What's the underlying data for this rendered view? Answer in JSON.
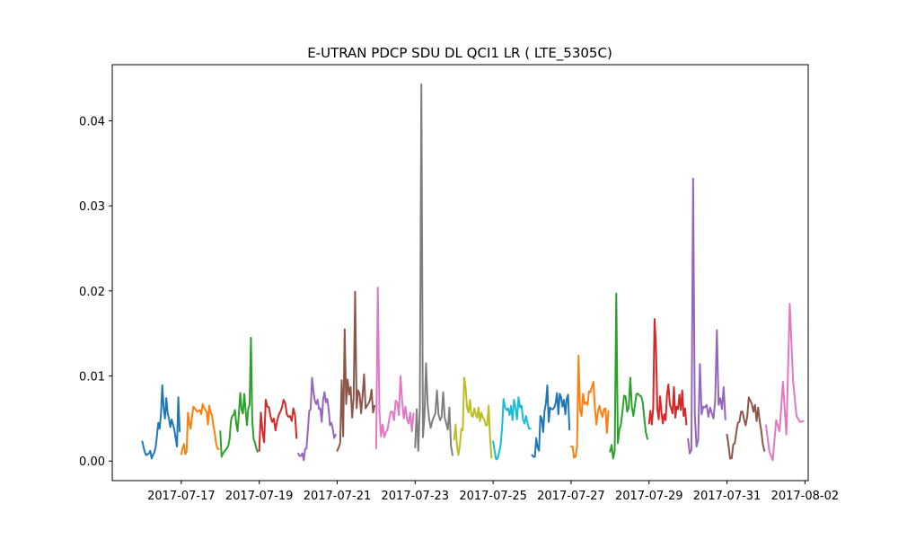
{
  "chart_data": {
    "type": "line",
    "title": "E-UTRAN PDCP SDU DL QCI1 LR ( LTE_5305C)",
    "xlabel": "",
    "ylabel": "",
    "x_axis_type": "date",
    "xlim": [
      "2017-07-15T05:30",
      "2017-08-02T02:00"
    ],
    "ylim": [
      -0.0023,
      0.0466
    ],
    "xticks": [
      "2017-07-17",
      "2017-07-19",
      "2017-07-21",
      "2017-07-23",
      "2017-07-25",
      "2017-07-27",
      "2017-07-29",
      "2017-07-31",
      "2017-08-02"
    ],
    "yticks": [
      "0.00",
      "0.01",
      "0.02",
      "0.03",
      "0.04"
    ],
    "ytick_values": [
      0.0,
      0.01,
      0.02,
      0.03,
      0.04
    ],
    "grid": false,
    "legend": "none",
    "colors": [
      "#1f77b4",
      "#ff7f0e",
      "#2ca02c",
      "#d62728",
      "#9467bd",
      "#8c564b",
      "#e377c2",
      "#7f7f7f",
      "#bcbd22",
      "#17becf"
    ],
    "series": [
      {
        "date": "2017-07-16",
        "values": [
          0.0023,
          0.0016,
          0.001,
          0.0007,
          0.0008,
          0.0009,
          0.0012,
          0.0003,
          0.0007,
          0.001,
          0.0016,
          0.003,
          0.0045,
          0.0038,
          0.0055,
          0.0089,
          0.0063,
          0.005,
          0.0074,
          0.0056,
          0.005,
          0.004,
          0.0049,
          0.0043,
          0.0037,
          0.0027,
          0.0017,
          0.0075,
          0.0035
        ]
      },
      {
        "date": "2017-07-17",
        "values": [
          0.0008,
          0.0015,
          0.002,
          0.0008,
          0.0011,
          0.0057,
          0.0045,
          0.0038,
          0.0051,
          0.0064,
          0.0062,
          0.006,
          0.0058,
          0.0059,
          0.006,
          0.0055,
          0.0067,
          0.0063,
          0.006,
          0.0058,
          0.0043,
          0.0065,
          0.0057,
          0.0054,
          0.0042,
          0.0034,
          0.0022,
          0.0015,
          0.0014
        ]
      },
      {
        "date": "2017-07-18",
        "values": [
          0.0035,
          0.0005,
          0.0009,
          0.0011,
          0.0013,
          0.0015,
          0.0018,
          0.0026,
          0.0047,
          0.0053,
          0.0054,
          0.006,
          0.0044,
          0.0035,
          0.0057,
          0.008,
          0.006,
          0.0056,
          0.0079,
          0.006,
          0.0042,
          0.0062,
          0.0066,
          0.0145,
          0.0047,
          0.0026,
          0.0022,
          0.0015,
          0.0011
        ]
      },
      {
        "date": "2017-07-19",
        "values": [
          0.0012,
          0.0057,
          0.0035,
          0.0022,
          0.0072,
          0.0064,
          0.0063,
          0.0052,
          0.0046,
          0.005,
          0.0036,
          0.0047,
          0.0054,
          0.0058,
          0.0063,
          0.0072,
          0.0068,
          0.0055,
          0.0052,
          0.0053,
          0.0047,
          0.0062,
          0.0054,
          0.0027
        ]
      },
      {
        "date": "2017-07-20",
        "values": [
          0.0009,
          0.0006,
          0.0006,
          0.0009,
          0.0001,
          0.0014,
          0.0015,
          0.0037,
          0.0059,
          0.0061,
          0.0098,
          0.0082,
          0.0071,
          0.0067,
          0.0072,
          0.0061,
          0.0062,
          0.0046,
          0.0072,
          0.0081,
          0.0069,
          0.0073,
          0.0061,
          0.0042,
          0.0045,
          0.0038,
          0.0027,
          0.0031
        ]
      },
      {
        "date": "2017-07-21",
        "values": [
          0.0012,
          0.0016,
          0.0021,
          0.0095,
          0.0029,
          0.0155,
          0.0067,
          0.0096,
          0.0078,
          0.0087,
          0.0051,
          0.0074,
          0.0199,
          0.0062,
          0.0083,
          0.0079,
          0.0056,
          0.0077,
          0.0102,
          0.0062,
          0.0065,
          0.0068,
          0.0072,
          0.0084,
          0.0057,
          0.0065
        ]
      },
      {
        "date": "2017-07-22",
        "values": [
          0.0015,
          0.0204,
          0.0057,
          0.0029,
          0.0043,
          0.0028,
          0.0034,
          0.0037,
          0.0049,
          0.0058,
          0.0058,
          0.0048,
          0.0071,
          0.0069,
          0.0054,
          0.01,
          0.0071,
          0.005,
          0.0064,
          0.0049,
          0.0044,
          0.0057,
          0.0035,
          0.0056
        ]
      },
      {
        "date": "2017-07-23",
        "values": [
          0.0016,
          0.0061,
          0.0012,
          0.0062,
          0.0443,
          0.0028,
          0.0053,
          0.0115,
          0.0067,
          0.0049,
          0.0039,
          0.0047,
          0.0052,
          0.0056,
          0.0083,
          0.0055,
          0.0048,
          0.0052,
          0.0081,
          0.0051,
          0.0044,
          0.0037,
          0.0063,
          0.0018,
          0.0007
        ]
      },
      {
        "date": "2017-07-24",
        "values": [
          0.0025,
          0.0043,
          0.0018,
          0.0007,
          0.0019,
          0.0038,
          0.0036,
          0.0098,
          0.0086,
          0.0063,
          0.0057,
          0.0072,
          0.0054,
          0.0052,
          0.0062,
          0.0055,
          0.0051,
          0.0063,
          0.0047,
          0.0057,
          0.0051,
          0.0049,
          0.0042,
          0.0042,
          0.0065,
          0.0028,
          0.0004
        ]
      },
      {
        "date": "2017-07-25",
        "values": [
          0.0023,
          0.0012,
          0.0002,
          0.0003,
          0.001,
          0.0018,
          0.0039,
          0.0073,
          0.0063,
          0.006,
          0.0062,
          0.0054,
          0.0065,
          0.0048,
          0.0072,
          0.0063,
          0.0049,
          0.0075,
          0.0063,
          0.0065,
          0.0049,
          0.0044,
          0.0053,
          0.0045,
          0.0038,
          0.0038
        ]
      },
      {
        "date": "2017-07-26",
        "values": [
          0.0007,
          0.0005,
          0.0005,
          0.0027,
          0.0016,
          0.0012,
          0.0053,
          0.005,
          0.0034,
          0.0059,
          0.0068,
          0.0089,
          0.0046,
          0.0063,
          0.0061,
          0.0061,
          0.0063,
          0.0068,
          0.008,
          0.0055,
          0.0079,
          0.0075,
          0.0064,
          0.0072,
          0.0055,
          0.0073,
          0.0078,
          0.0037
        ]
      },
      {
        "date": "2017-07-27",
        "values": [
          0.0017,
          0.0017,
          0.0004,
          0.0005,
          0.0017,
          0.0124,
          0.006,
          0.0053,
          0.0079,
          0.0067,
          0.0069,
          0.0066,
          0.0082,
          0.0081,
          0.0088,
          0.0093,
          0.0061,
          0.0043,
          0.0058,
          0.0065,
          0.0057,
          0.0052,
          0.0061,
          0.0062,
          0.0033,
          0.0059
        ]
      },
      {
        "date": "2017-07-28",
        "values": [
          0.0011,
          0.0019,
          0.0003,
          0.0012,
          0.0197,
          0.0021,
          0.0037,
          0.0043,
          0.0059,
          0.0077,
          0.0076,
          0.0058,
          0.0063,
          0.0098,
          0.0064,
          0.0053,
          0.0066,
          0.0079,
          0.0079,
          0.0077,
          0.0076,
          0.0069,
          0.005,
          0.0034,
          0.0026
        ]
      },
      {
        "date": "2017-07-29",
        "values": [
          0.0044,
          0.0059,
          0.0043,
          0.0062,
          0.0167,
          0.0135,
          0.0061,
          0.0049,
          0.0076,
          0.0057,
          0.0044,
          0.0055,
          0.0048,
          0.0078,
          0.009,
          0.0067,
          0.0062,
          0.0056,
          0.0087,
          0.0051,
          0.0064,
          0.0061,
          0.0078,
          0.006,
          0.0083,
          0.0053,
          0.0062,
          0.0043
        ]
      },
      {
        "date": "2017-07-30",
        "values": [
          0.0026,
          0.0009,
          0.0013,
          0.0332,
          0.0055,
          0.0017,
          0.0025,
          0.0114,
          0.0055,
          0.0064,
          0.0063,
          0.0066,
          0.0052,
          0.0063,
          0.0056,
          0.005,
          0.0071,
          0.0154,
          0.0066,
          0.0074,
          0.0061,
          0.0087,
          0.0049
        ]
      },
      {
        "date": "2017-07-31",
        "values": [
          0.0031,
          0.0018,
          0.0003,
          0.0003,
          0.0019,
          0.0021,
          0.0034,
          0.0045,
          0.0046,
          0.0058,
          0.0058,
          0.0049,
          0.0042,
          0.0052,
          0.0075,
          0.0071,
          0.0067,
          0.0058,
          0.0066,
          0.0047,
          0.0063,
          0.0047,
          0.0036,
          0.002,
          0.0012
        ]
      },
      {
        "date": "2017-08-01",
        "values": [
          0.0042,
          0.0011,
          0.0001,
          0.0048,
          0.0035,
          0.0093,
          0.0031,
          0.0185,
          0.0093,
          0.0053,
          0.0046,
          0.0047
        ]
      }
    ]
  }
}
